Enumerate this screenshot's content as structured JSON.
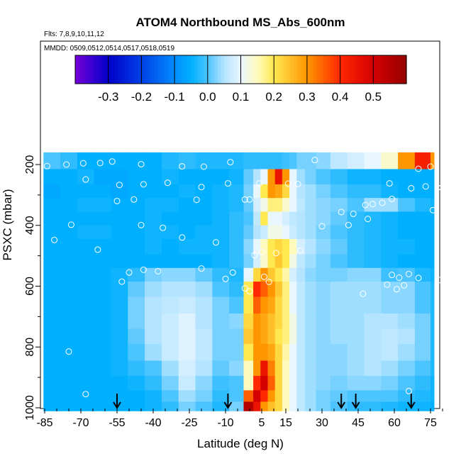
{
  "chart_data": {
    "type": "heatmap",
    "title": "ATOM4 Northbound MS_Abs_600nm",
    "subtitle_flights": "Flts: 7,8,9,10,11,12",
    "subtitle_dates": "MMDD: 0509,0512,0514,0517,0518,0519",
    "xlabel": "Latitude (deg N)",
    "ylabel": "PSXC (mbar)",
    "xlim": [
      -87,
      83
    ],
    "ylim": [
      1020,
      140
    ],
    "y_reversed": true,
    "x_ticks": [
      -85,
      -70,
      -55,
      -40,
      -25,
      -10,
      5,
      15,
      30,
      45,
      60,
      75
    ],
    "y_ticks": [
      200,
      400,
      600,
      800,
      1000
    ],
    "colorbar": {
      "range": [
        -0.4,
        0.6
      ],
      "ticks": [
        -0.3,
        -0.2,
        -0.1,
        0.0,
        0.1,
        0.2,
        0.3,
        0.4,
        0.5
      ],
      "tick_labels": [
        "-0.3",
        "-0.2",
        "-0.1",
        "0.0",
        "0.1",
        "0.2",
        "0.3",
        "0.4",
        "0.5"
      ]
    },
    "arrows_latitude": [
      -55,
      -9,
      38,
      44,
      67
    ],
    "grid": false,
    "heatmap_lat_centers": [
      -82,
      -75,
      -68,
      -61,
      -54,
      -47,
      -40,
      -33,
      -26,
      -19,
      -12,
      -5,
      0,
      3,
      6,
      9,
      12,
      15,
      18,
      21,
      25,
      30,
      37,
      44,
      51,
      58,
      65,
      72,
      78
    ],
    "heatmap_pressure_centers": [
      190,
      240,
      290,
      330,
      380,
      420,
      470,
      520,
      560,
      610,
      660,
      720,
      760,
      820,
      870,
      920,
      965,
      995
    ],
    "heatmap_values": [
      [
        0,
        -0.02,
        -0.05,
        -0.05,
        -0.05,
        -0.05,
        -0.05,
        -0.03,
        -0.02,
        -0.03,
        -0.03,
        -0.03,
        -0.02,
        -0.02,
        -0.02,
        -0.02,
        -0.02,
        -0.01,
        0.0,
        0.02,
        0.02,
        0.03,
        0.06,
        0.08,
        0.1,
        0.14,
        0.3,
        0.42,
        0.3
      ],
      [
        -0.05,
        -0.05,
        -0.04,
        -0.06,
        -0.06,
        -0.05,
        -0.05,
        -0.04,
        -0.05,
        -0.05,
        -0.05,
        -0.04,
        0.01,
        0.05,
        0.1,
        0.3,
        0.45,
        0.3,
        0.1,
        0.04,
        0.02,
        0.0,
        -0.02,
        -0.04,
        -0.04,
        -0.05,
        -0.05,
        -0.05,
        -0.05
      ],
      [
        -0.06,
        -0.05,
        -0.05,
        -0.05,
        -0.06,
        -0.05,
        -0.05,
        -0.05,
        -0.04,
        -0.05,
        -0.04,
        -0.03,
        0.02,
        0.1,
        0.2,
        0.3,
        0.28,
        0.22,
        0.1,
        0.05,
        0.04,
        0.02,
        0.0,
        -0.02,
        -0.02,
        -0.04,
        -0.05,
        -0.05,
        -0.05
      ],
      [
        -0.05,
        -0.05,
        -0.04,
        -0.04,
        -0.05,
        -0.05,
        -0.04,
        -0.04,
        -0.05,
        -0.05,
        -0.04,
        -0.03,
        0.01,
        0.08,
        0.12,
        0.18,
        0.18,
        0.14,
        0.1,
        0.06,
        0.04,
        0.03,
        0.02,
        0.0,
        0.04,
        0.04,
        0.0,
        -0.03,
        -0.04
      ],
      [
        -0.05,
        -0.05,
        -0.05,
        -0.05,
        -0.05,
        -0.05,
        -0.04,
        -0.05,
        -0.05,
        -0.05,
        -0.04,
        -0.02,
        0.0,
        0.06,
        0.2,
        0.1,
        0.1,
        0.08,
        0.06,
        0.05,
        0.04,
        0.03,
        0.01,
        -0.02,
        -0.03,
        -0.04,
        -0.05,
        -0.05,
        -0.05
      ],
      [
        -0.05,
        -0.05,
        -0.04,
        -0.04,
        -0.05,
        -0.05,
        -0.04,
        -0.04,
        -0.05,
        -0.04,
        -0.04,
        -0.02,
        0.01,
        0.05,
        0.07,
        0.12,
        0.12,
        0.1,
        0.07,
        0.05,
        0.04,
        0.02,
        0.0,
        -0.02,
        -0.03,
        -0.04,
        -0.05,
        -0.05,
        -0.05
      ],
      [
        -0.05,
        -0.05,
        -0.05,
        -0.05,
        -0.05,
        -0.05,
        -0.04,
        -0.05,
        -0.04,
        -0.04,
        -0.04,
        -0.02,
        0.03,
        0.1,
        0.15,
        0.2,
        0.22,
        0.2,
        0.15,
        0.08,
        0.05,
        0.03,
        0.01,
        -0.02,
        -0.03,
        -0.04,
        -0.04,
        -0.05,
        -0.05
      ],
      [
        -0.05,
        -0.05,
        -0.05,
        -0.05,
        -0.05,
        -0.05,
        -0.05,
        -0.05,
        -0.05,
        -0.05,
        -0.04,
        -0.02,
        0.02,
        0.08,
        0.14,
        0.2,
        0.24,
        0.2,
        0.12,
        0.06,
        0.04,
        0.02,
        0.0,
        -0.02,
        -0.03,
        -0.04,
        -0.05,
        -0.05,
        -0.05
      ],
      [
        -0.05,
        -0.05,
        -0.05,
        -0.05,
        -0.04,
        -0.02,
        0.02,
        0.03,
        0.03,
        0.01,
        -0.02,
        -0.03,
        0.1,
        0.22,
        0.3,
        0.24,
        0.2,
        0.16,
        0.08,
        0.05,
        0.03,
        0.02,
        0.02,
        0.03,
        0.03,
        -0.01,
        0.0,
        -0.03,
        -0.04
      ],
      [
        -0.05,
        -0.05,
        -0.05,
        -0.05,
        -0.04,
        0.01,
        0.04,
        0.05,
        0.05,
        0.04,
        0.0,
        -0.02,
        0.2,
        0.4,
        0.35,
        0.3,
        0.24,
        0.18,
        0.1,
        0.06,
        0.04,
        0.03,
        0.04,
        0.04,
        0.04,
        0.03,
        0.03,
        0.0,
        -0.03
      ],
      [
        -0.05,
        -0.05,
        -0.05,
        -0.05,
        -0.04,
        0.02,
        0.05,
        0.06,
        0.07,
        0.05,
        0.02,
        0.0,
        0.2,
        0.35,
        0.3,
        0.28,
        0.22,
        0.18,
        0.1,
        0.06,
        0.04,
        0.03,
        0.04,
        0.04,
        0.04,
        0.03,
        0.03,
        0.0,
        -0.03
      ],
      [
        -0.05,
        -0.05,
        -0.05,
        -0.05,
        -0.04,
        0.02,
        0.05,
        0.07,
        0.09,
        0.05,
        0.02,
        0.03,
        0.22,
        0.3,
        0.28,
        0.25,
        0.22,
        0.18,
        0.12,
        0.06,
        0.04,
        0.03,
        0.04,
        0.04,
        0.05,
        0.05,
        0.04,
        0.02,
        -0.03
      ],
      [
        -0.05,
        -0.05,
        -0.05,
        -0.05,
        -0.04,
        0.01,
        0.05,
        0.07,
        0.09,
        0.06,
        0.02,
        0.02,
        0.24,
        0.3,
        0.28,
        0.25,
        0.2,
        0.18,
        0.12,
        0.06,
        0.04,
        0.03,
        0.04,
        0.04,
        0.05,
        0.06,
        0.05,
        0.02,
        -0.03
      ],
      [
        -0.05,
        -0.05,
        -0.05,
        -0.05,
        -0.04,
        0.0,
        0.04,
        0.07,
        0.09,
        0.06,
        0.02,
        0.02,
        0.2,
        0.3,
        0.3,
        0.28,
        0.22,
        0.16,
        0.1,
        0.06,
        0.04,
        0.03,
        0.03,
        0.04,
        0.05,
        0.06,
        0.04,
        0.02,
        -0.03
      ],
      [
        -0.05,
        -0.05,
        -0.05,
        -0.05,
        -0.04,
        -0.02,
        0.0,
        0.04,
        0.08,
        0.05,
        0.01,
        0.03,
        0.15,
        0.3,
        0.45,
        0.32,
        0.22,
        0.15,
        0.1,
        0.06,
        0.04,
        0.03,
        0.03,
        0.04,
        0.05,
        0.04,
        0.02,
        0.0,
        -0.03
      ],
      [
        -0.05,
        -0.05,
        -0.05,
        -0.05,
        -0.05,
        -0.04,
        -0.02,
        0.02,
        0.07,
        0.03,
        -0.01,
        0.0,
        0.15,
        0.4,
        0.5,
        0.35,
        0.22,
        0.15,
        0.1,
        0.06,
        0.04,
        0.03,
        0.02,
        0.03,
        0.03,
        0.02,
        0.0,
        -0.02,
        -0.04
      ],
      [
        -0.05,
        -0.05,
        -0.05,
        -0.05,
        -0.05,
        -0.05,
        -0.04,
        0.0,
        0.04,
        0.02,
        -0.02,
        0.0,
        0.35,
        0.5,
        0.4,
        0.3,
        0.22,
        0.15,
        0.1,
        0.06,
        0.04,
        0.02,
        0.01,
        0.0,
        0.0,
        0.0,
        -0.02,
        -0.03,
        -0.04
      ],
      [
        -0.05,
        -0.05,
        -0.05,
        -0.05,
        -0.05,
        -0.05,
        -0.04,
        -0.02,
        0.02,
        0.0,
        -0.03,
        0.02,
        0.55,
        0.45,
        0.3,
        0.25,
        0.22,
        0.15,
        0.1,
        0.06,
        0.04,
        0.02,
        0.0,
        -0.02,
        -0.02,
        -0.03,
        -0.04,
        -0.04,
        -0.05
      ]
    ],
    "sample_points": [
      [
        -84,
        205
      ],
      [
        -76,
        200
      ],
      [
        -69,
        196
      ],
      [
        -62,
        195
      ],
      [
        -57,
        190
      ],
      [
        -45,
        199
      ],
      [
        -28,
        206
      ],
      [
        -19,
        207
      ],
      [
        -8,
        192
      ],
      [
        27,
        185
      ],
      [
        70,
        214
      ],
      [
        75,
        207
      ],
      [
        -68,
        249
      ],
      [
        -54,
        267
      ],
      [
        -44,
        265
      ],
      [
        -34,
        260
      ],
      [
        -20,
        274
      ],
      [
        -9,
        262
      ],
      [
        4,
        262
      ],
      [
        16,
        263
      ],
      [
        20,
        264
      ],
      [
        58,
        262
      ],
      [
        67,
        278
      ],
      [
        73,
        272
      ],
      [
        78,
        276
      ],
      [
        -55,
        320
      ],
      [
        -48,
        315
      ],
      [
        -22,
        316
      ],
      [
        -2,
        315
      ],
      [
        0,
        315
      ],
      [
        38,
        356
      ],
      [
        43,
        362
      ],
      [
        48,
        333
      ],
      [
        51,
        330
      ],
      [
        55,
        326
      ],
      [
        59,
        313
      ],
      [
        76,
        350
      ],
      [
        -81,
        448
      ],
      [
        -74,
        398
      ],
      [
        -45,
        399
      ],
      [
        -36,
        408
      ],
      [
        -28,
        440
      ],
      [
        -14,
        456
      ],
      [
        2,
        498
      ],
      [
        5,
        488
      ],
      [
        11,
        491
      ],
      [
        21,
        483
      ],
      [
        30,
        403
      ],
      [
        41,
        399
      ],
      [
        49,
        379
      ],
      [
        -63,
        480
      ],
      [
        -50,
        555
      ],
      [
        -44,
        546
      ],
      [
        -38,
        551
      ],
      [
        -20,
        542
      ],
      [
        -7,
        555
      ],
      [
        6,
        569
      ],
      [
        8,
        586
      ],
      [
        59,
        563
      ],
      [
        62,
        572
      ],
      [
        66,
        560
      ],
      [
        70,
        573
      ],
      [
        79,
        580
      ],
      [
        -53,
        585
      ],
      [
        -10,
        576
      ],
      [
        -2,
        607
      ],
      [
        0,
        617
      ],
      [
        47,
        625
      ],
      [
        57,
        595
      ],
      [
        61,
        610
      ],
      [
        64,
        597
      ],
      [
        -75,
        815
      ],
      [
        -68,
        955
      ],
      [
        66,
        945
      ]
    ]
  },
  "icons": {
    "arrow": "down-arrow-icon",
    "sample_point": "open-circle-icon"
  }
}
